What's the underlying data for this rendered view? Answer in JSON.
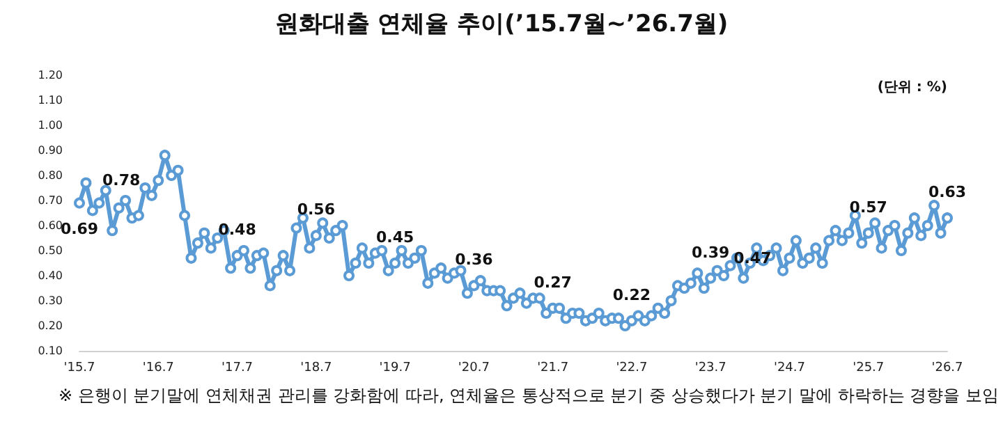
{
  "chart_data": {
    "type": "line",
    "title": "원화대출 연체율 추이(’15.7월~’26.7월)",
    "subtitle": "(단위 : %)",
    "annotations": [
      "※ 은행이 분기말에 연체채권 관리를 강화함에 따라, 연체율은 통상적으로 분기 중 상승했다가 분기 말에 하락하는 경향을 보임"
    ],
    "categories": [
      "'15.7",
      null,
      null,
      null,
      null,
      null,
      null,
      null,
      null,
      null,
      null,
      null,
      "'16.7",
      null,
      null,
      null,
      null,
      null,
      null,
      null,
      null,
      null,
      null,
      null,
      "'17.7",
      null,
      null,
      null,
      null,
      null,
      null,
      null,
      null,
      null,
      null,
      null,
      "'18.7",
      null,
      null,
      null,
      null,
      null,
      null,
      null,
      null,
      null,
      null,
      null,
      "'19.7",
      null,
      null,
      null,
      null,
      null,
      null,
      null,
      null,
      null,
      null,
      null,
      "'20.7",
      null,
      null,
      null,
      null,
      null,
      null,
      null,
      null,
      null,
      null,
      null,
      "'21.7",
      null,
      null,
      null,
      null,
      null,
      null,
      null,
      null,
      null,
      null,
      null,
      "'22.7",
      null,
      null,
      null,
      null,
      null,
      null,
      null,
      null,
      null,
      null,
      null,
      "'23.7",
      null,
      null,
      null,
      null,
      null,
      null,
      null,
      null,
      null,
      null,
      null,
      "'24.7",
      null,
      null,
      null,
      null,
      null,
      null,
      null,
      null,
      null,
      null,
      null,
      "'25.7",
      null,
      null,
      null,
      null,
      null,
      null,
      null,
      null,
      null,
      null,
      null,
      "'26.7"
    ],
    "series": [
      {
        "color": "#5b9bd5",
        "values": [
          0.69,
          0.77,
          0.66,
          0.69,
          0.74,
          0.58,
          0.67,
          0.7,
          0.63,
          0.64,
          0.75,
          0.72,
          0.78,
          0.88,
          0.8,
          0.82,
          0.64,
          0.47,
          0.53,
          0.57,
          0.51,
          0.55,
          0.58,
          0.43,
          0.48,
          0.5,
          0.43,
          0.48,
          0.49,
          0.36,
          0.42,
          0.48,
          0.42,
          0.59,
          0.63,
          0.51,
          0.56,
          0.61,
          0.55,
          0.58,
          0.6,
          0.4,
          0.45,
          0.51,
          0.45,
          0.49,
          0.5,
          0.42,
          0.45,
          0.5,
          0.45,
          0.47,
          0.5,
          0.37,
          0.41,
          0.43,
          0.39,
          0.41,
          0.42,
          0.33,
          0.36,
          0.38,
          0.34,
          0.34,
          0.34,
          0.28,
          0.31,
          0.33,
          0.29,
          0.31,
          0.31,
          0.25,
          0.27,
          0.27,
          0.23,
          0.25,
          0.25,
          0.22,
          0.23,
          0.25,
          0.22,
          0.23,
          0.23,
          0.2,
          0.22,
          0.24,
          0.22,
          0.24,
          0.27,
          0.25,
          0.3,
          0.36,
          0.35,
          0.37,
          0.41,
          0.35,
          0.39,
          0.42,
          0.4,
          0.44,
          0.47,
          0.39,
          0.45,
          0.51,
          0.46,
          0.48,
          0.51,
          0.42,
          0.47,
          0.54,
          0.45,
          0.47,
          0.51,
          0.45,
          0.54,
          0.58,
          0.54,
          0.57,
          0.64,
          0.53,
          0.57,
          0.61,
          0.51,
          0.58,
          0.6,
          0.5,
          0.57,
          0.63,
          0.56,
          0.6,
          0.68,
          0.57,
          0.63
        ],
        "value_labels": [
          "0.69",
          null,
          null,
          null,
          null,
          null,
          null,
          null,
          null,
          null,
          null,
          null,
          "0.78",
          null,
          null,
          null,
          null,
          null,
          null,
          null,
          null,
          null,
          null,
          null,
          "0.48",
          null,
          null,
          null,
          null,
          null,
          null,
          null,
          null,
          null,
          null,
          null,
          "0.56",
          null,
          null,
          null,
          null,
          null,
          null,
          null,
          null,
          null,
          null,
          null,
          "0.45",
          null,
          null,
          null,
          null,
          null,
          null,
          null,
          null,
          null,
          null,
          null,
          "0.36",
          null,
          null,
          null,
          null,
          null,
          null,
          null,
          null,
          null,
          null,
          null,
          "0.27",
          null,
          null,
          null,
          null,
          null,
          null,
          null,
          null,
          null,
          null,
          null,
          "0.22",
          null,
          null,
          null,
          null,
          null,
          null,
          null,
          null,
          null,
          null,
          null,
          "0.39",
          null,
          null,
          null,
          null,
          null,
          null,
          null,
          null,
          null,
          null,
          null,
          "0.47",
          null,
          null,
          null,
          null,
          null,
          null,
          null,
          null,
          null,
          null,
          null,
          "0.57",
          null,
          null,
          null,
          null,
          null,
          null,
          null,
          null,
          null,
          null,
          null,
          "0.63"
        ]
      }
    ],
    "ylim": [
      0.1,
      1.2
    ],
    "yticks": [
      {
        "value": 0.1,
        "label": "0.10"
      },
      {
        "value": 0.2,
        "label": "0.20"
      },
      {
        "value": 0.3,
        "label": "0.30"
      },
      {
        "value": 0.4,
        "label": "0.40"
      },
      {
        "value": 0.5,
        "label": "0.50"
      },
      {
        "value": 0.6,
        "label": "0.60"
      },
      {
        "value": 0.7,
        "label": "0.70"
      },
      {
        "value": 0.8,
        "label": "0.80"
      },
      {
        "value": 0.9,
        "label": "0.90"
      },
      {
        "value": 1.0,
        "label": "1.00"
      },
      {
        "value": 1.1,
        "label": "1.10"
      },
      {
        "value": 1.2,
        "label": "1.20"
      }
    ],
    "grid": false,
    "marker": "circle",
    "line_style": "solid"
  }
}
